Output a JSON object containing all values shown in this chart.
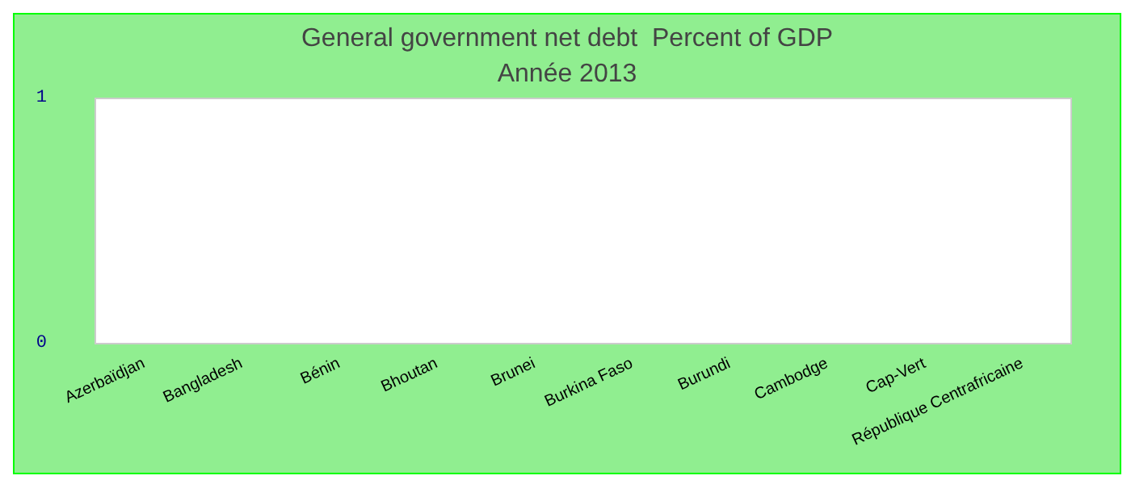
{
  "chart_data": {
    "type": "bar",
    "title": "General government net debt  Percent of GDP",
    "subtitle": "Année 2013",
    "categories": [
      "Azerbaïdjan",
      "Bangladesh",
      "Bénin",
      "Bhoutan",
      "Brunei",
      "Burkina Faso",
      "Burundi",
      "Cambodge",
      "Cap-Vert",
      "République Centrafricaine"
    ],
    "values": [
      null,
      null,
      null,
      null,
      null,
      null,
      null,
      null,
      null,
      null
    ],
    "ylim": [
      0,
      1
    ],
    "yticks": [
      0,
      1
    ],
    "grid": false
  }
}
